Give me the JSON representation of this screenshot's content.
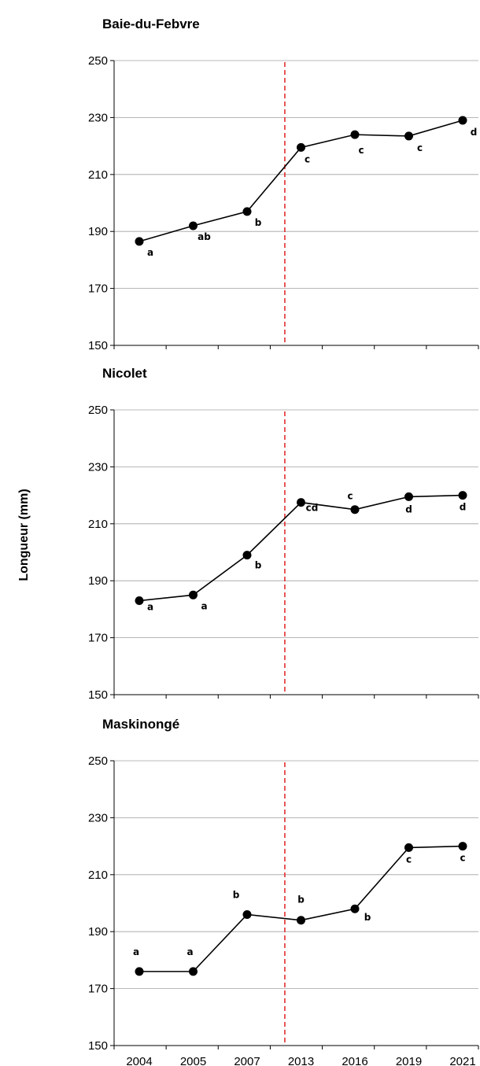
{
  "chart_data": {
    "type": "line",
    "ylabel": "Longueur (mm)",
    "categories": [
      "2004",
      "2005",
      "2007",
      "2013",
      "2016",
      "2019",
      "2021"
    ],
    "ylim": [
      150,
      250
    ],
    "yticks": [
      150,
      170,
      190,
      210,
      230,
      250
    ],
    "grid": true,
    "reference_line": {
      "between": [
        "2007",
        "2013"
      ],
      "style": "dashed",
      "color": "#e02020"
    },
    "line_color": "#000000",
    "panels": [
      {
        "title": "Baie-du-Febvre",
        "values": [
          186.5,
          192,
          197,
          219.5,
          224,
          223.5,
          229
        ],
        "letters": [
          "a",
          "ab",
          "b",
          "c",
          "c",
          "c",
          "d"
        ]
      },
      {
        "title": "Nicolet",
        "values": [
          183,
          185,
          199,
          217.5,
          215,
          219.5,
          220
        ],
        "letters": [
          "a",
          "a",
          "b",
          "cd",
          "c",
          "d",
          "d"
        ]
      },
      {
        "title": "Maskinongé",
        "values": [
          176,
          176,
          196,
          194,
          198,
          219.5,
          220
        ],
        "letters": [
          "a",
          "a",
          "b",
          "b",
          "b",
          "c",
          "c"
        ]
      }
    ]
  }
}
